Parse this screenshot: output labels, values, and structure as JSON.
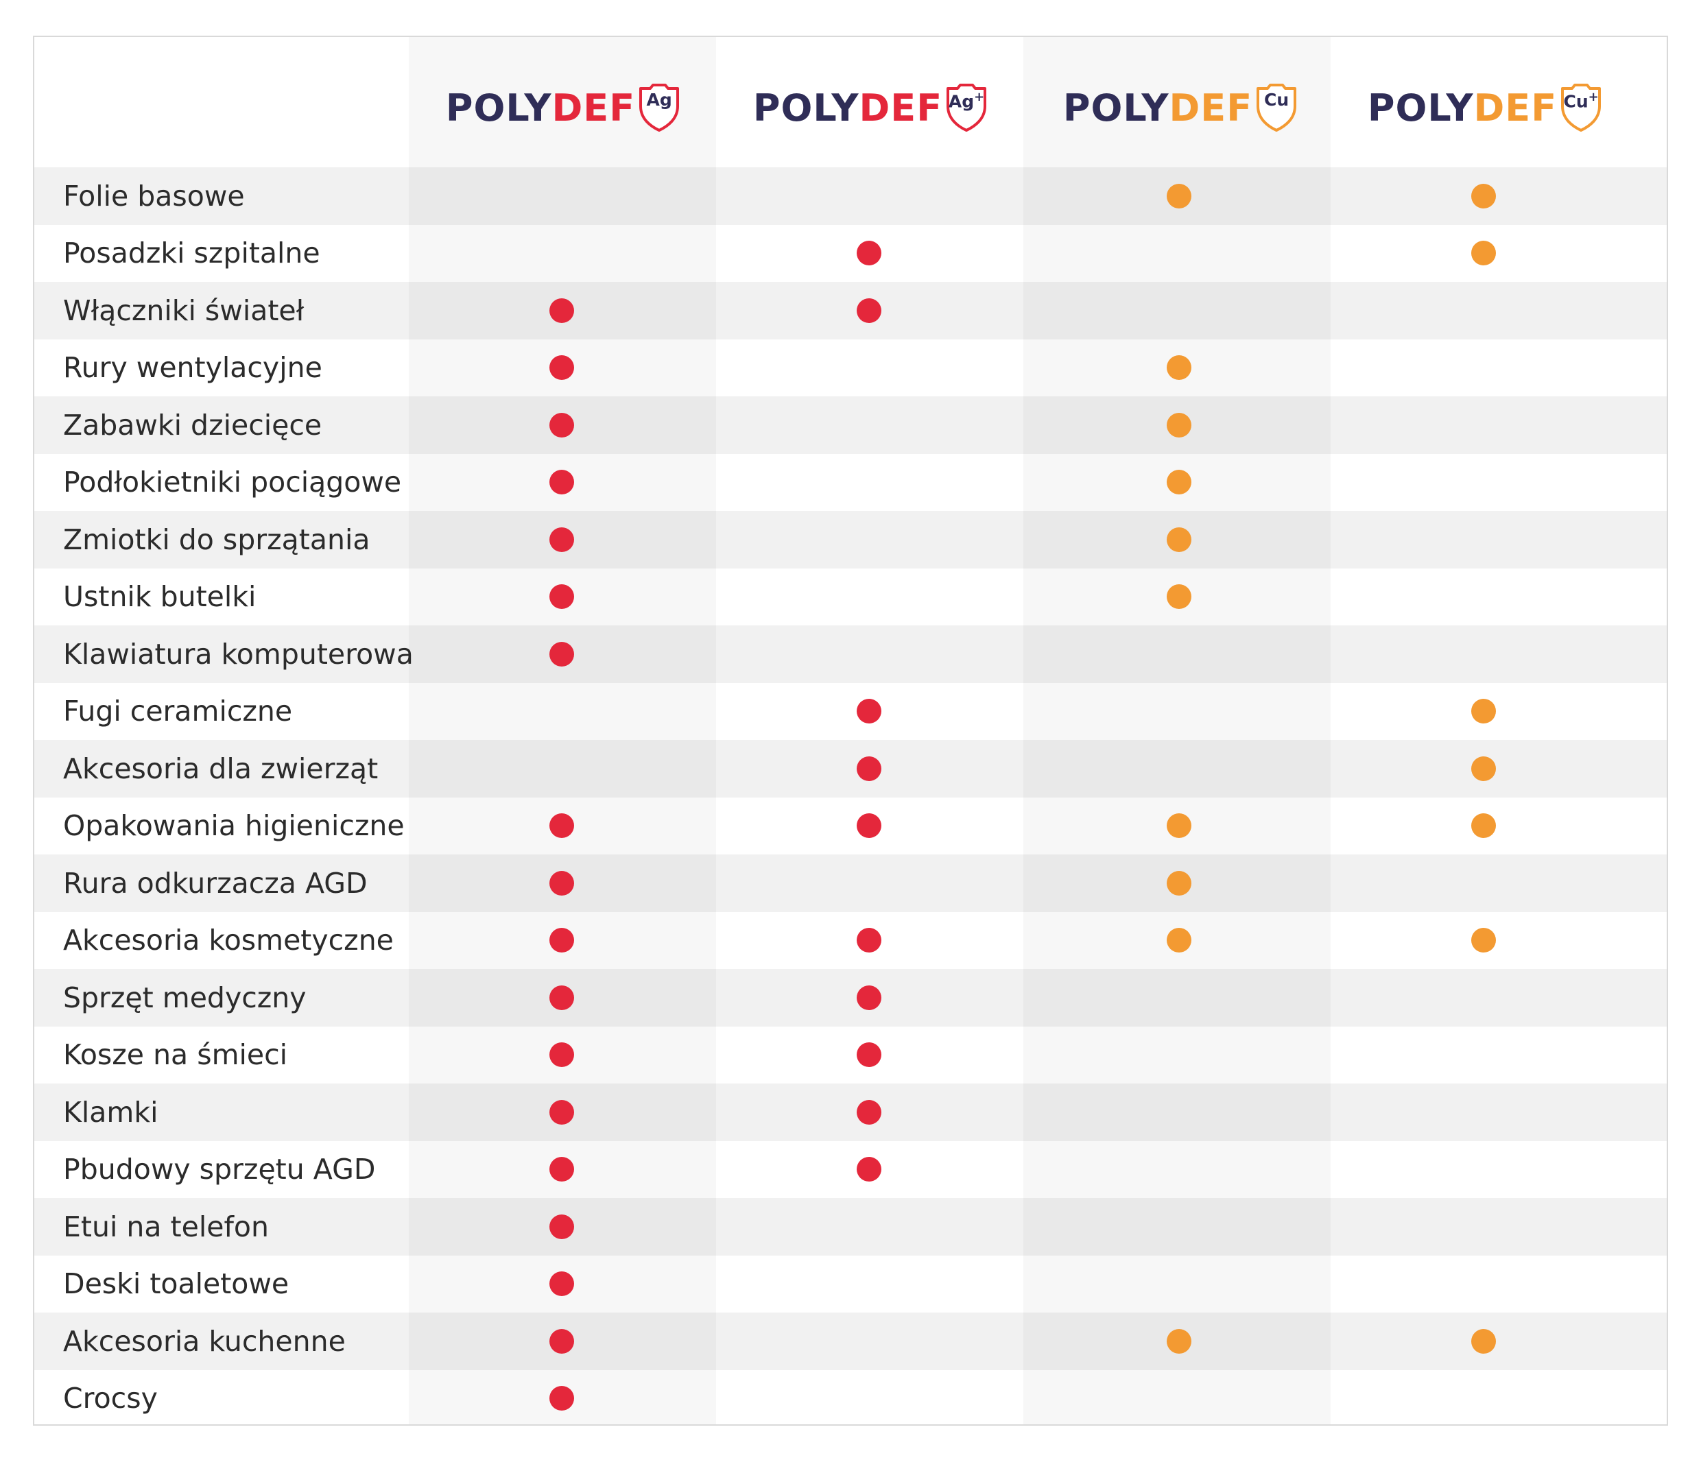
{
  "colors": {
    "ag": "#e4273b",
    "cu": "#f39a32",
    "navy": "#2f2d57",
    "column_tint": "#f7f7f7"
  },
  "products": [
    {
      "brand": "POLY",
      "suffix": "DEF",
      "badge": "Ag",
      "plus": false,
      "accent": "#e4273b"
    },
    {
      "brand": "POLY",
      "suffix": "DEF",
      "badge": "Ag",
      "plus": true,
      "accent": "#e4273b"
    },
    {
      "brand": "POLY",
      "suffix": "DEF",
      "badge": "Cu",
      "plus": false,
      "accent": "#f39a32"
    },
    {
      "brand": "POLY",
      "suffix": "DEF",
      "badge": "Cu",
      "plus": true,
      "accent": "#f39a32"
    }
  ],
  "rows": [
    {
      "label": "Folie basowe",
      "marks": [
        false,
        false,
        true,
        true
      ]
    },
    {
      "label": "Posadzki szpitalne",
      "marks": [
        false,
        true,
        false,
        true
      ]
    },
    {
      "label": "Włączniki świateł",
      "marks": [
        true,
        true,
        false,
        false
      ]
    },
    {
      "label": "Rury wentylacyjne",
      "marks": [
        true,
        false,
        true,
        false
      ]
    },
    {
      "label": "Zabawki dziecięce",
      "marks": [
        true,
        false,
        true,
        false
      ]
    },
    {
      "label": "Podłokietniki pociągowe",
      "marks": [
        true,
        false,
        true,
        false
      ]
    },
    {
      "label": "Zmiotki do sprzątania",
      "marks": [
        true,
        false,
        true,
        false
      ]
    },
    {
      "label": "Ustnik butelki",
      "marks": [
        true,
        false,
        true,
        false
      ]
    },
    {
      "label": "Klawiatura komputerowa",
      "marks": [
        true,
        false,
        false,
        false
      ]
    },
    {
      "label": "Fugi ceramiczne",
      "marks": [
        false,
        true,
        false,
        true
      ]
    },
    {
      "label": "Akcesoria dla zwierząt",
      "marks": [
        false,
        true,
        false,
        true
      ]
    },
    {
      "label": "Opakowania higieniczne",
      "marks": [
        true,
        true,
        true,
        true
      ]
    },
    {
      "label": "Rura odkurzacza AGD",
      "marks": [
        true,
        false,
        true,
        false
      ]
    },
    {
      "label": "Akcesoria kosmetyczne",
      "marks": [
        true,
        true,
        true,
        true
      ]
    },
    {
      "label": "Sprzęt medyczny",
      "marks": [
        true,
        true,
        false,
        false
      ]
    },
    {
      "label": "Kosze na śmieci",
      "marks": [
        true,
        true,
        false,
        false
      ]
    },
    {
      "label": "Klamki",
      "marks": [
        true,
        true,
        false,
        false
      ]
    },
    {
      "label": "Pbudowy sprzętu AGD",
      "marks": [
        true,
        true,
        false,
        false
      ]
    },
    {
      "label": "Etui na telefon",
      "marks": [
        true,
        false,
        false,
        false
      ]
    },
    {
      "label": "Deski toaletowe",
      "marks": [
        true,
        false,
        false,
        false
      ]
    },
    {
      "label": "Akcesoria kuchenne",
      "marks": [
        true,
        false,
        true,
        true
      ]
    },
    {
      "label": "Crocsy",
      "marks": [
        true,
        false,
        false,
        false
      ]
    }
  ]
}
